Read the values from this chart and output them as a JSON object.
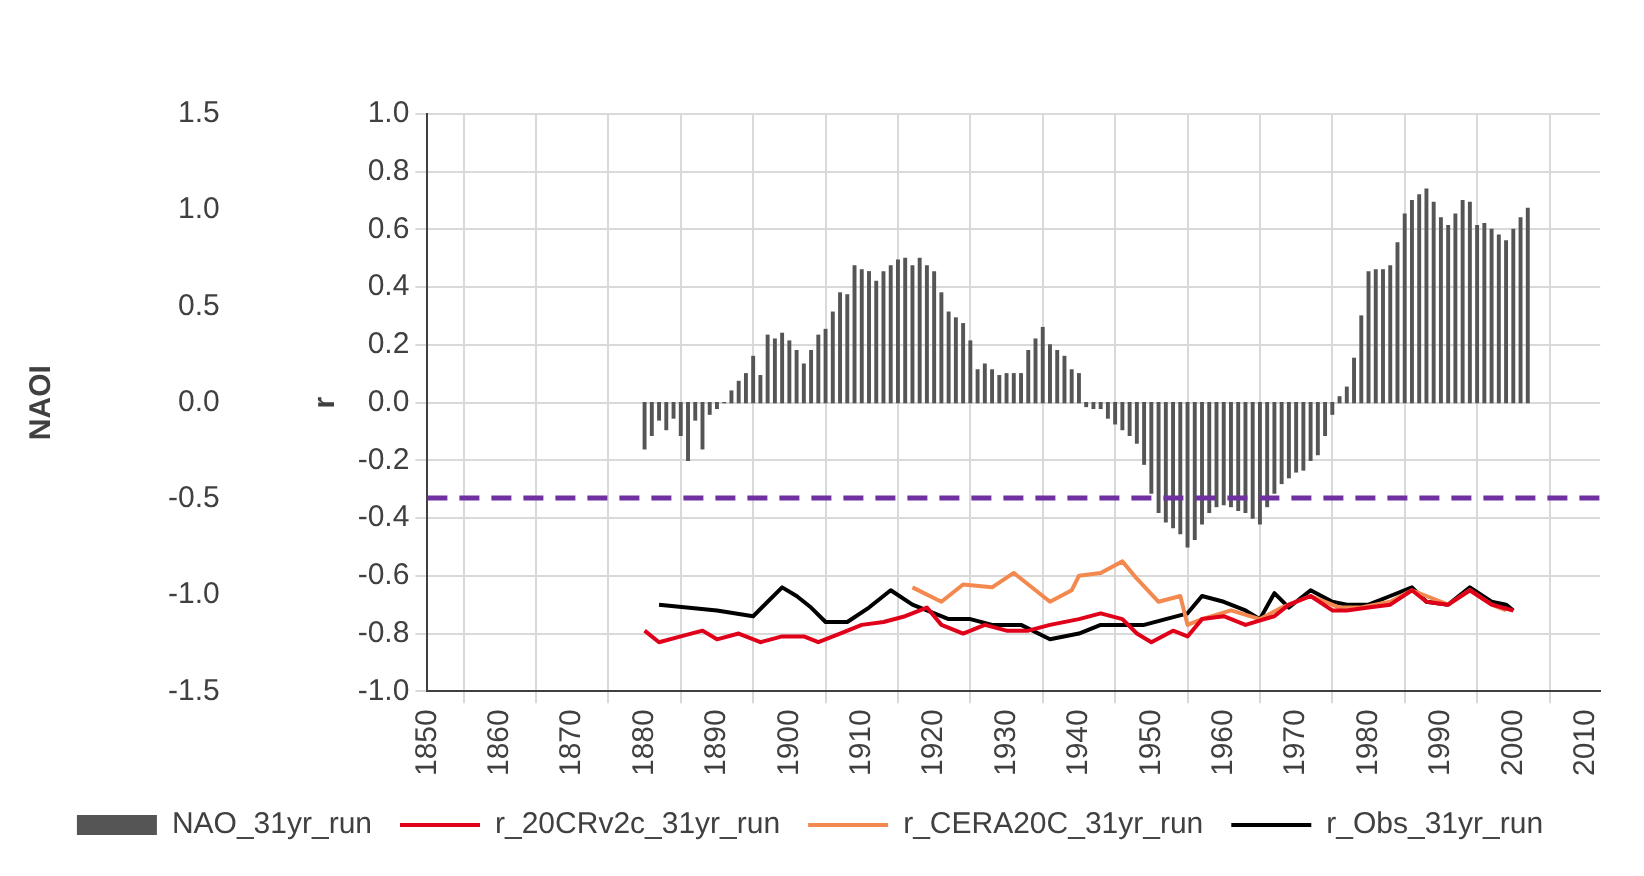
{
  "chart_data": {
    "type": "line",
    "xlim": [
      1850,
      2012
    ],
    "xticks": [
      1850,
      1860,
      1870,
      1880,
      1890,
      1900,
      1910,
      1920,
      1930,
      1940,
      1950,
      1960,
      1970,
      1980,
      1990,
      2000,
      2010
    ],
    "ylabel": "r",
    "ylim": [
      -1,
      1
    ],
    "yticks": [
      {
        "value": -1,
        "label": "-1.0"
      },
      -0.8,
      -0.6,
      -0.4,
      -0.2,
      {
        "value": 0,
        "label": "0.0"
      },
      0.2,
      0.4,
      0.6,
      0.8,
      {
        "value": 1,
        "label": "1.0"
      }
    ],
    "y2label": "NAOI",
    "y2lim": [
      -1.5,
      1.5
    ],
    "y2ticks": [
      -1.5,
      {
        "value": -1,
        "label": "-1.0"
      },
      -0.5,
      {
        "value": 0,
        "label": "0.0"
      },
      0.5,
      {
        "value": 1,
        "label": "1.0"
      },
      1.5
    ],
    "grid": true,
    "legend": "bottom",
    "marker": "none",
    "ref_lines": [
      {
        "axis": "y",
        "value": -0.33,
        "label": null,
        "color": "#7030a0",
        "line_style": "dashed"
      }
    ],
    "series": [
      {
        "name": "NAO_31yr_run",
        "type": "bar",
        "axis": "y2",
        "color": "#555555",
        "x": [
          1880,
          1881,
          1882,
          1883,
          1884,
          1885,
          1886,
          1887,
          1888,
          1889,
          1890,
          1891,
          1892,
          1893,
          1894,
          1895,
          1896,
          1897,
          1898,
          1899,
          1900,
          1901,
          1902,
          1903,
          1904,
          1905,
          1906,
          1907,
          1908,
          1909,
          1910,
          1911,
          1912,
          1913,
          1914,
          1915,
          1916,
          1917,
          1918,
          1919,
          1920,
          1921,
          1922,
          1923,
          1924,
          1925,
          1926,
          1927,
          1928,
          1929,
          1930,
          1931,
          1932,
          1933,
          1934,
          1935,
          1936,
          1937,
          1938,
          1939,
          1940,
          1941,
          1942,
          1943,
          1944,
          1945,
          1946,
          1947,
          1948,
          1949,
          1950,
          1951,
          1952,
          1953,
          1954,
          1955,
          1956,
          1957,
          1958,
          1959,
          1960,
          1961,
          1962,
          1963,
          1964,
          1965,
          1966,
          1967,
          1968,
          1969,
          1970,
          1971,
          1972,
          1973,
          1974,
          1975,
          1976,
          1977,
          1978,
          1979,
          1980,
          1981,
          1982,
          1983,
          1984,
          1985,
          1986,
          1987,
          1988,
          1989,
          1990,
          1991,
          1992,
          1993,
          1994,
          1995,
          1996,
          1997,
          1998,
          1999,
          2000,
          2001,
          2002
        ],
        "values": [
          -0.24,
          -0.17,
          -0.09,
          -0.14,
          -0.08,
          -0.17,
          -0.3,
          -0.09,
          -0.24,
          -0.06,
          -0.03,
          0,
          0.06,
          0.11,
          0.15,
          0.24,
          0.14,
          0.35,
          0.33,
          0.36,
          0.32,
          0.27,
          0.2,
          0.27,
          0.35,
          0.38,
          0.47,
          0.57,
          0.56,
          0.71,
          0.69,
          0.68,
          0.63,
          0.68,
          0.71,
          0.74,
          0.75,
          0.71,
          0.75,
          0.71,
          0.68,
          0.57,
          0.47,
          0.44,
          0.41,
          0.32,
          0.17,
          0.2,
          0.17,
          0.14,
          0.15,
          0.15,
          0.15,
          0.27,
          0.33,
          0.39,
          0.3,
          0.27,
          0.24,
          0.17,
          0.15,
          -0.02,
          -0.03,
          -0.03,
          -0.08,
          -0.11,
          -0.14,
          -0.17,
          -0.21,
          -0.32,
          -0.47,
          -0.57,
          -0.62,
          -0.65,
          -0.68,
          -0.75,
          -0.71,
          -0.63,
          -0.57,
          -0.54,
          -0.53,
          -0.54,
          -0.56,
          -0.57,
          -0.6,
          -0.63,
          -0.54,
          -0.47,
          -0.42,
          -0.39,
          -0.36,
          -0.35,
          -0.3,
          -0.27,
          -0.17,
          -0.06,
          0.03,
          0.08,
          0.23,
          0.45,
          0.68,
          0.69,
          0.69,
          0.71,
          0.83,
          0.98,
          1.05,
          1.08,
          1.11,
          1.04,
          0.96,
          0.92,
          0.98,
          1.05,
          1.04,
          0.92,
          0.93,
          0.9,
          0.87,
          0.84,
          0.9,
          0.96,
          1.01
        ]
      },
      {
        "name": "r_20CRv2c_31yr_run",
        "color": "#e0001a",
        "x": [
          1880,
          1882,
          1885,
          1888,
          1890,
          1893,
          1896,
          1899,
          1902,
          1904,
          1907,
          1910,
          1913,
          1916,
          1919,
          1921,
          1924,
          1927,
          1930,
          1933,
          1936,
          1940,
          1943,
          1946,
          1948,
          1950,
          1953,
          1955,
          1957,
          1960,
          1963,
          1967,
          1969,
          1972,
          1975,
          1977,
          1980,
          1983,
          1986,
          1988,
          1991,
          1994,
          1997,
          2000
        ],
        "values": [
          -0.79,
          -0.83,
          -0.81,
          -0.79,
          -0.82,
          -0.8,
          -0.83,
          -0.81,
          -0.81,
          -0.83,
          -0.8,
          -0.77,
          -0.76,
          -0.74,
          -0.71,
          -0.77,
          -0.8,
          -0.77,
          -0.79,
          -0.79,
          -0.77,
          -0.75,
          -0.73,
          -0.75,
          -0.8,
          -0.83,
          -0.79,
          -0.81,
          -0.75,
          -0.74,
          -0.77,
          -0.74,
          -0.7,
          -0.67,
          -0.72,
          -0.72,
          -0.71,
          -0.7,
          -0.65,
          -0.69,
          -0.7,
          -0.65,
          -0.7,
          -0.72
        ]
      },
      {
        "name": "r_CERA20C_31yr_run",
        "color": "#f4894f",
        "x": [
          1917,
          1921,
          1924,
          1928,
          1931,
          1936,
          1939,
          1940,
          1943,
          1946,
          1948,
          1951,
          1954,
          1955,
          1957,
          1961,
          1965,
          1968,
          1972,
          1976,
          1979,
          1983,
          1986,
          1988,
          1991,
          1994,
          1997,
          1999
        ],
        "values": [
          -0.64,
          -0.69,
          -0.63,
          -0.64,
          -0.59,
          -0.69,
          -0.65,
          -0.6,
          -0.59,
          -0.55,
          -0.61,
          -0.69,
          -0.67,
          -0.77,
          -0.75,
          -0.72,
          -0.75,
          -0.71,
          -0.67,
          -0.71,
          -0.71,
          -0.69,
          -0.65,
          -0.67,
          -0.7,
          -0.65,
          -0.7,
          -0.72
        ]
      },
      {
        "name": "r_Obs_31yr_run",
        "color": "#000000",
        "x": [
          1882,
          1890,
          1895,
          1899,
          1901,
          1903,
          1905,
          1908,
          1911,
          1914,
          1917,
          1919,
          1922,
          1925,
          1928,
          1932,
          1936,
          1940,
          1943,
          1946,
          1949,
          1952,
          1955,
          1957,
          1960,
          1963,
          1965,
          1967,
          1969,
          1972,
          1975,
          1977,
          1980,
          1983,
          1986,
          1988,
          1991,
          1994,
          1997,
          1999,
          2000
        ],
        "values": [
          -0.7,
          -0.72,
          -0.74,
          -0.64,
          -0.67,
          -0.71,
          -0.76,
          -0.76,
          -0.71,
          -0.65,
          -0.7,
          -0.72,
          -0.75,
          -0.75,
          -0.77,
          -0.77,
          -0.82,
          -0.8,
          -0.77,
          -0.77,
          -0.77,
          -0.75,
          -0.73,
          -0.67,
          -0.69,
          -0.72,
          -0.75,
          -0.66,
          -0.71,
          -0.65,
          -0.69,
          -0.7,
          -0.7,
          -0.67,
          -0.64,
          -0.69,
          -0.7,
          -0.64,
          -0.69,
          -0.7,
          -0.72
        ]
      }
    ]
  }
}
